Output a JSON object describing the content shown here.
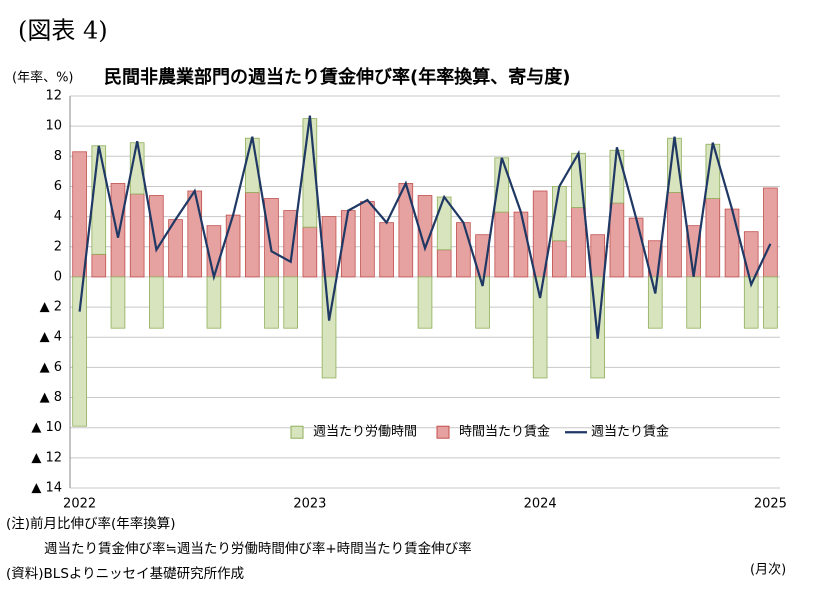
{
  "chart_data": {
    "type": "bar",
    "stacked": true,
    "header": "(図表 4)",
    "title": "民間非農業部門の週当たり賃金伸び率(年率換算、寄与度)",
    "y_label": "(年率、%)",
    "x_label": "(月次)",
    "notes": [
      "(注)前月比伸び率(年率換算)",
      "週当たり賃金伸び率≒週当たり労働時間伸び率+時間当たり賃金伸び率",
      "(資料)BLSよりニッセイ基礎研究所作成"
    ],
    "categories": [
      "2022",
      null,
      null,
      null,
      null,
      null,
      null,
      null,
      null,
      null,
      null,
      null,
      "2023",
      null,
      null,
      null,
      null,
      null,
      null,
      null,
      null,
      null,
      null,
      null,
      "2024",
      null,
      null,
      null,
      null,
      null,
      null,
      null,
      null,
      null,
      null,
      null,
      "2025"
    ],
    "series": [
      {
        "name": "週当たり労働時間",
        "type": "bar",
        "color": "#d7e4bd",
        "edge": "#8fae5a",
        "values": [
          -9.9,
          7.2,
          -3.4,
          3.4,
          -3.4,
          0,
          0,
          -3.4,
          0,
          3.6,
          -3.4,
          -3.4,
          7.2,
          -6.7,
          0,
          0,
          0,
          0,
          -3.4,
          3.5,
          0,
          -3.4,
          3.6,
          0,
          -6.7,
          3.6,
          3.6,
          -6.7,
          3.5,
          0,
          -3.4,
          3.6,
          -3.4,
          3.6,
          0,
          -3.4,
          -3.4
        ]
      },
      {
        "name": "時間当たり賃金",
        "type": "bar",
        "color": "#e6a1a1",
        "edge": "#c0504d",
        "values": [
          8.3,
          1.5,
          6.2,
          5.5,
          5.4,
          3.8,
          5.7,
          3.4,
          4.1,
          5.6,
          5.2,
          4.4,
          3.3,
          4.0,
          4.4,
          5.0,
          3.6,
          6.2,
          5.4,
          1.8,
          3.6,
          2.8,
          4.3,
          4.3,
          5.7,
          2.4,
          4.6,
          2.8,
          4.9,
          3.9,
          2.4,
          5.6,
          3.4,
          5.2,
          4.5,
          3.0,
          5.9
        ]
      },
      {
        "name": "週当たり賃金",
        "type": "line",
        "color": "#1f3864",
        "values": [
          -2.3,
          8.7,
          2.6,
          9.0,
          1.8,
          3.8,
          5.7,
          0,
          4.1,
          9.3,
          1.7,
          1.0,
          10.7,
          -2.9,
          4.4,
          5.1,
          3.6,
          6.2,
          1.9,
          5.3,
          3.6,
          -0.6,
          7.9,
          4.3,
          -1.4,
          6.0,
          8.2,
          -4.1,
          8.6,
          3.9,
          -1.1,
          9.3,
          0,
          8.9,
          4.5,
          -0.5,
          2.2
        ]
      }
    ],
    "ylim": [
      -14,
      12
    ],
    "yticks": [
      12,
      10,
      8,
      6,
      4,
      2,
      0,
      {
        "value": -2,
        "label": "▲ 2"
      },
      {
        "value": -4,
        "label": "▲ 4"
      },
      {
        "value": -6,
        "label": "▲ 6"
      },
      {
        "value": -8,
        "label": "▲ 8"
      },
      {
        "value": -10,
        "label": "▲ 10"
      },
      {
        "value": -12,
        "label": "▲ 12"
      },
      {
        "value": -14,
        "label": "▲ 14"
      }
    ],
    "grid": true,
    "legend": "lower center"
  }
}
